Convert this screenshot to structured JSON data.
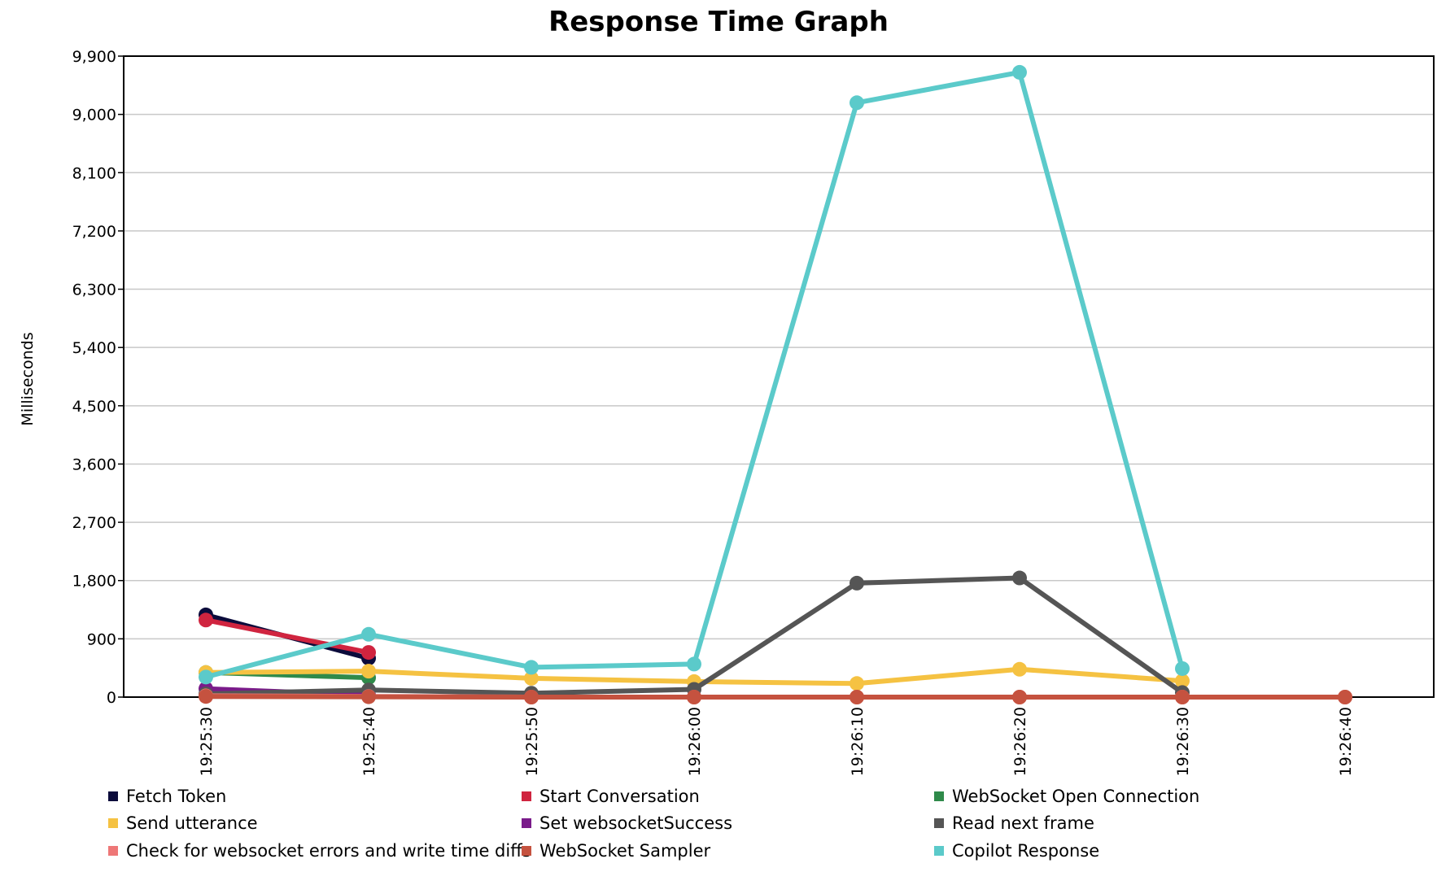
{
  "chart_data": {
    "type": "line",
    "title": "Response Time Graph",
    "xlabel": "",
    "ylabel": "Milliseconds",
    "ylim": [
      0,
      9900
    ],
    "yticks": [
      0,
      900,
      1800,
      2700,
      3600,
      4500,
      5400,
      6300,
      7200,
      8100,
      9000,
      9900
    ],
    "ytick_labels": [
      "0",
      "900",
      "1,800",
      "2,700",
      "3,600",
      "4,500",
      "5,400",
      "6,300",
      "7,200",
      "8,100",
      "9,000",
      "9,900"
    ],
    "x": [
      "19:25:30",
      "19:25:40",
      "19:25:50",
      "19:26:00",
      "19:26:10",
      "19:26:20",
      "19:26:30",
      "19:26:40"
    ],
    "grid": true,
    "legend_position": "bottom",
    "series": [
      {
        "name": "Fetch Token",
        "color": "#0b0b3b",
        "values": [
          1270,
          600,
          null,
          null,
          null,
          null,
          null,
          null
        ]
      },
      {
        "name": "Start Conversation",
        "color": "#d0243f",
        "values": [
          1190,
          690,
          null,
          null,
          null,
          null,
          null,
          null
        ]
      },
      {
        "name": "WebSocket Open Connection",
        "color": "#2f8a4a",
        "values": [
          380,
          300,
          null,
          null,
          null,
          null,
          null,
          null
        ]
      },
      {
        "name": "Send utterance",
        "color": "#f5c242",
        "values": [
          380,
          400,
          290,
          240,
          210,
          430,
          250,
          null
        ]
      },
      {
        "name": "Set websocketSuccess",
        "color": "#7a1b8a",
        "values": [
          130,
          30,
          null,
          null,
          null,
          null,
          null,
          null
        ]
      },
      {
        "name": "Read next frame",
        "color": "#555555",
        "values": [
          50,
          110,
          60,
          120,
          1760,
          1840,
          70,
          null
        ]
      },
      {
        "name": "Check for websocket errors and write time diffs",
        "color": "#ee7777",
        "values": [
          20,
          10,
          0,
          0,
          0,
          0,
          0,
          0
        ]
      },
      {
        "name": "WebSocket Sampler",
        "color": "#c5523f",
        "values": [
          10,
          5,
          0,
          0,
          0,
          0,
          0,
          0
        ]
      },
      {
        "name": "Copilot Response",
        "color": "#5bcaca",
        "values": [
          310,
          970,
          460,
          510,
          9180,
          9650,
          440,
          null
        ]
      }
    ]
  }
}
